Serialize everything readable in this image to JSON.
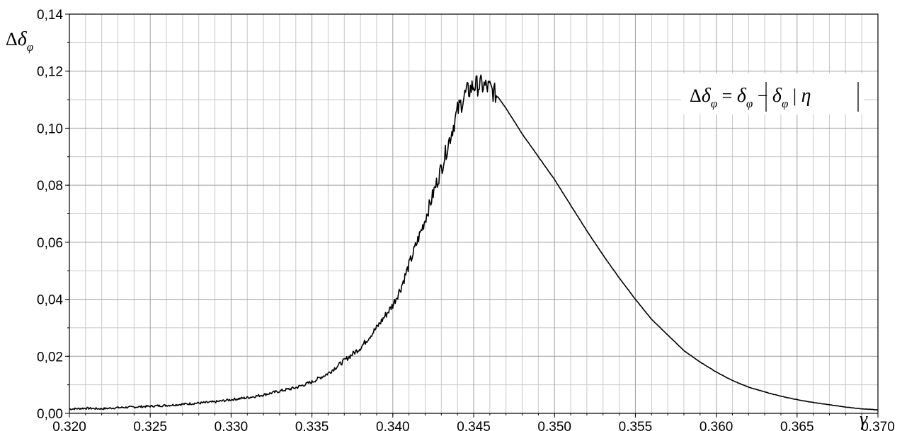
{
  "chart_data": {
    "type": "line",
    "title": "",
    "xlabel": "γ",
    "ylabel": "Δδφ",
    "annotation": "Δδφ = |δφ − δφ | η|",
    "xlim": [
      0.32,
      0.37
    ],
    "ylim": [
      0.0,
      0.14
    ],
    "grid": true,
    "xticks": [
      0.32,
      0.325,
      0.33,
      0.335,
      0.34,
      0.345,
      0.35,
      0.355,
      0.36,
      0.365,
      0.37
    ],
    "xtick_labels": [
      "0,320",
      "0,325",
      "0,330",
      "0,335",
      "0,340",
      "0,345",
      "0,350",
      "0,355",
      "0,360",
      "0,365",
      "0,370"
    ],
    "yticks": [
      0.0,
      0.02,
      0.04,
      0.06,
      0.08,
      0.1,
      0.12,
      0.14
    ],
    "ytick_labels": [
      "0,00",
      "0,02",
      "0,04",
      "0,06",
      "0,08",
      "0,10",
      "0,12",
      "0,14"
    ],
    "series": [
      {
        "color": "#000000",
        "x": [
          0.32,
          0.321,
          0.322,
          0.323,
          0.324,
          0.325,
          0.326,
          0.327,
          0.328,
          0.329,
          0.33,
          0.331,
          0.332,
          0.333,
          0.334,
          0.335,
          0.336,
          0.337,
          0.338,
          0.339,
          0.34,
          0.3405,
          0.341,
          0.3415,
          0.342,
          0.3425,
          0.343,
          0.3435,
          0.344,
          0.3445,
          0.345,
          0.3455,
          0.346,
          0.3465,
          0.347,
          0.348,
          0.349,
          0.35,
          0.351,
          0.352,
          0.353,
          0.354,
          0.355,
          0.356,
          0.357,
          0.358,
          0.359,
          0.36,
          0.361,
          0.362,
          0.363,
          0.364,
          0.365,
          0.366,
          0.367,
          0.368,
          0.369,
          0.37
        ],
        "y": [
          0.0015,
          0.0018,
          0.0016,
          0.002,
          0.0022,
          0.0025,
          0.0028,
          0.0032,
          0.0036,
          0.004,
          0.0048,
          0.0055,
          0.0065,
          0.0078,
          0.009,
          0.011,
          0.014,
          0.0185,
          0.023,
          0.03,
          0.038,
          0.044,
          0.052,
          0.06,
          0.068,
          0.077,
          0.086,
          0.096,
          0.106,
          0.112,
          0.115,
          0.115,
          0.114,
          0.111,
          0.107,
          0.098,
          0.09,
          0.082,
          0.073,
          0.064,
          0.0555,
          0.0475,
          0.04,
          0.033,
          0.0275,
          0.022,
          0.018,
          0.0145,
          0.0115,
          0.0092,
          0.0075,
          0.006,
          0.0048,
          0.0038,
          0.003,
          0.0022,
          0.0016,
          0.0012
        ]
      }
    ]
  }
}
